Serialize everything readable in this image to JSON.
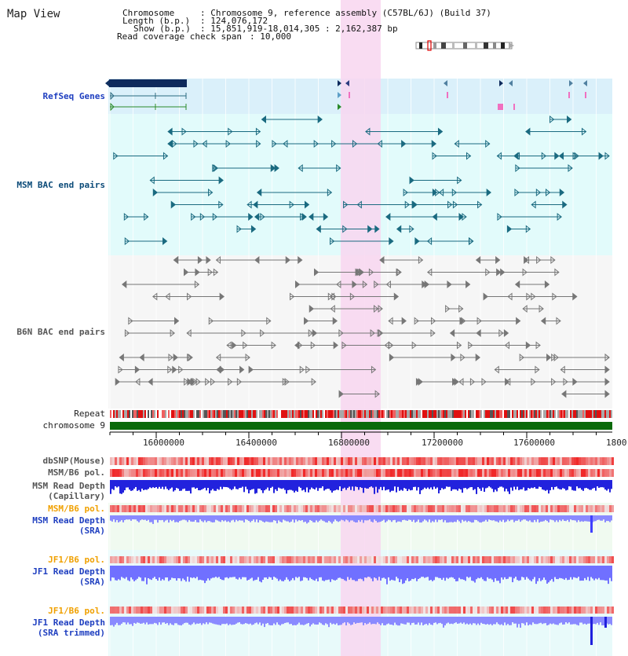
{
  "page_title": "Map View",
  "info": {
    "chromosome_label": "Chromosome",
    "chromosome_value": ": Chromosome 9, reference assembly (C57BL/6J) (Build 37)",
    "length_label": "Length (b.p.)",
    "length_value": ": 124,076,172",
    "show_label": "Show (b.p.)",
    "show_value": ": 15,851,919-18,014,305 : 2,162,387 bp",
    "coverage_label": "Read coverage check span",
    "coverage_value": ": 10,000"
  },
  "tracks": {
    "refseq": "RefSeq Genes",
    "msm_bac": "MSM BAC end pairs",
    "b6n_bac": "B6N BAC end pairs",
    "repeat": "Repeat",
    "chromosome": "chromosome 9",
    "dbsnp": "dbSNP(Mouse)",
    "msm_b6_pol": "MSM/B6 pol.",
    "msm_depth_cap_1": "MSM Read Depth",
    "msm_depth_cap_2": "(Capillary)",
    "msm_b6_pol_sra": "MSM/B6 pol.",
    "msm_depth_sra_1": "MSM Read Depth",
    "msm_depth_sra_2": "(SRA)",
    "jf1_b6_pol": "JF1/B6 pol.",
    "jf1_depth_sra_1": "JF1 Read Depth",
    "jf1_depth_sra_2": "(SRA)",
    "jf1_b6_pol_trim": "JF1/B6 pol.",
    "jf1_depth_trim_1": "JF1 Read Depth",
    "jf1_depth_trim_2": "(SRA trimmed)"
  },
  "ruler": {
    "ticks": [
      "16000000",
      "16400000",
      "16800000",
      "17200000",
      "17600000",
      "1800"
    ]
  },
  "colors": {
    "refseq_bg": "#daf0fa",
    "msm_bg": "#e2fbfb",
    "b6n_bg": "#f4f4f4",
    "highlight": "#f8d6f0",
    "chromosome_bar": "#0a6a0a",
    "depth_msm_cap": "#2222dd",
    "depth_sra": "#8080ff",
    "pol_light": "#ffd0d0",
    "pol_dark": "#ee3030"
  }
}
